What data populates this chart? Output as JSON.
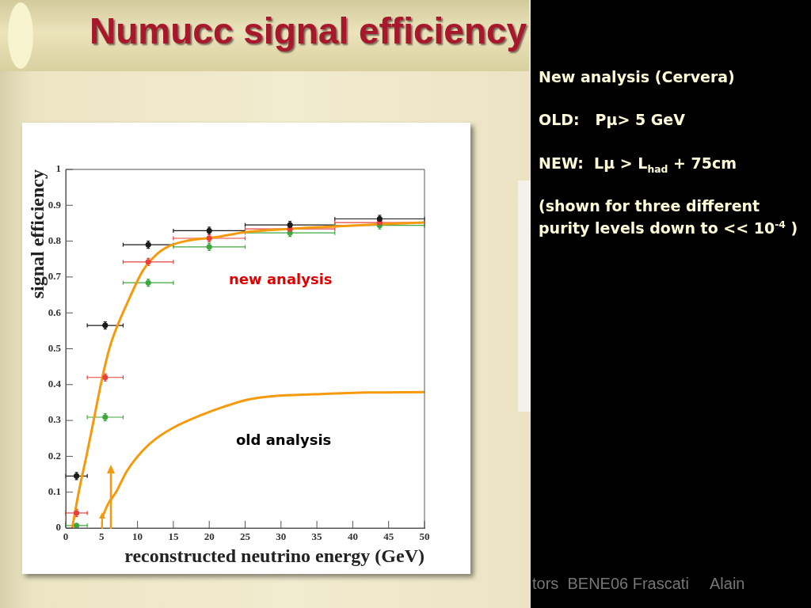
{
  "chart_data": {
    "type": "scatter",
    "title": "Numucc signal efficiency",
    "xlabel": "reconstructed neutrino energy (GeV)",
    "ylabel": "signal efficiency",
    "x": [
      1.5,
      5.5,
      11.5,
      20,
      31.25,
      43.75
    ],
    "series": [
      {
        "color": "#1a1a1a",
        "values": [
          0.145,
          0.565,
          0.79,
          0.829,
          0.845,
          0.862
        ],
        "errors": [
          0.01,
          0.01,
          0.01,
          0.01,
          0.01,
          0.01
        ],
        "xerrors": [
          1.5,
          2.5,
          3.5,
          5,
          6.25,
          6.25
        ]
      },
      {
        "color": "#e8403c",
        "values": [
          0.042,
          0.42,
          0.742,
          0.808,
          0.834,
          0.852
        ],
        "errors": [
          0.01,
          0.01,
          0.01,
          0.01,
          0.01,
          0.01
        ],
        "xerrors": [
          1.5,
          2.5,
          3.5,
          5,
          6.25,
          6.25
        ]
      },
      {
        "color": "#3ea83e",
        "values": [
          0.007,
          0.309,
          0.684,
          0.784,
          0.823,
          0.844
        ],
        "errors": [
          0.005,
          0.01,
          0.01,
          0.01,
          0.01,
          0.01
        ],
        "xerrors": [
          1.5,
          2.5,
          3.5,
          5,
          6.25,
          6.25
        ]
      },
      {
        "name": "new analysis",
        "type": "line",
        "marker": "none",
        "color": "#f59a0c",
        "x": [
          0.9,
          1.85,
          2.95,
          3.7,
          5.1,
          6.1,
          7.0,
          8.9,
          10.7,
          12.5,
          14.4,
          16.9,
          20.6,
          25,
          30.9,
          36.5,
          43.8,
          50
        ],
        "values": [
          0,
          0.104,
          0.207,
          0.281,
          0.42,
          0.502,
          0.554,
          0.642,
          0.716,
          0.76,
          0.786,
          0.801,
          0.81,
          0.825,
          0.834,
          0.84,
          0.847,
          0.852
        ]
      },
      {
        "name": "old analysis",
        "type": "line",
        "marker": "none",
        "color": "#f59a0c",
        "x": [
          5.1,
          5.9,
          7.0,
          8.5,
          10.7,
          12.5,
          15.1,
          18.5,
          22,
          25.4,
          29.1,
          34.6,
          42,
          50
        ],
        "values": [
          0.03,
          0.067,
          0.1,
          0.158,
          0.215,
          0.248,
          0.281,
          0.312,
          0.338,
          0.358,
          0.368,
          0.373,
          0.378,
          0.379
        ]
      }
    ],
    "xlim": [
      0,
      50
    ],
    "xticks": [
      0,
      5,
      10,
      15,
      20,
      25,
      30,
      35,
      40,
      45,
      50
    ],
    "ylim": [
      0,
      1
    ],
    "yticks": [
      0,
      0.1,
      0.2,
      0.3,
      0.4,
      0.5,
      0.6,
      0.7,
      0.8,
      0.9,
      1
    ],
    "grid": false,
    "legend": false,
    "marker": "circle",
    "annotations": [
      "New analysis (Cervera)",
      "OLD:   Pμ> 5 GeV",
      "NEW:  Lμ > L$_{had}$ + 75cm",
      "(shown for three different purity levels down to << 10$^{-4}$ )",
      "tors  BENE06 Frascati",
      "Alain"
    ]
  }
}
